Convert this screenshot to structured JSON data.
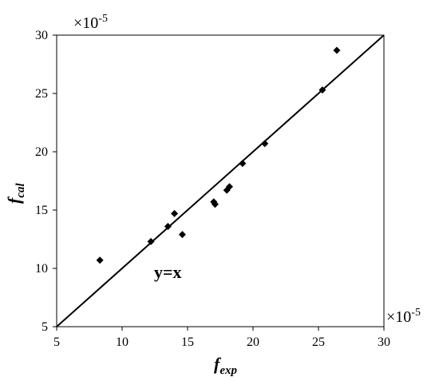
{
  "chart_data": {
    "type": "scatter",
    "title": "",
    "xlabel": {
      "main": "f",
      "sub": "exp"
    },
    "ylabel": {
      "main": "f",
      "sub": "cal"
    },
    "x_multiplier": "×10-5",
    "y_multiplier": "×10-5",
    "xlim": [
      5,
      30
    ],
    "ylim": [
      5,
      30
    ],
    "xticks": [
      5,
      10,
      15,
      20,
      25,
      30
    ],
    "yticks": [
      5,
      10,
      15,
      20,
      25,
      30
    ],
    "grid": false,
    "legend": "none",
    "marker": "diamond",
    "marker_color": "#000000",
    "reference_line": {
      "label": "y=x",
      "from": [
        5,
        5
      ],
      "to": [
        30,
        30
      ]
    },
    "points": [
      {
        "x": 8.3,
        "y": 10.7
      },
      {
        "x": 12.2,
        "y": 12.3
      },
      {
        "x": 13.5,
        "y": 13.6
      },
      {
        "x": 14.0,
        "y": 14.7
      },
      {
        "x": 14.6,
        "y": 12.9
      },
      {
        "x": 17.0,
        "y": 15.7
      },
      {
        "x": 17.1,
        "y": 15.5
      },
      {
        "x": 18.0,
        "y": 16.7
      },
      {
        "x": 18.2,
        "y": 17.0
      },
      {
        "x": 19.2,
        "y": 19.0
      },
      {
        "x": 20.9,
        "y": 20.7
      },
      {
        "x": 25.3,
        "y": 25.3
      },
      {
        "x": 26.4,
        "y": 28.7
      }
    ]
  }
}
